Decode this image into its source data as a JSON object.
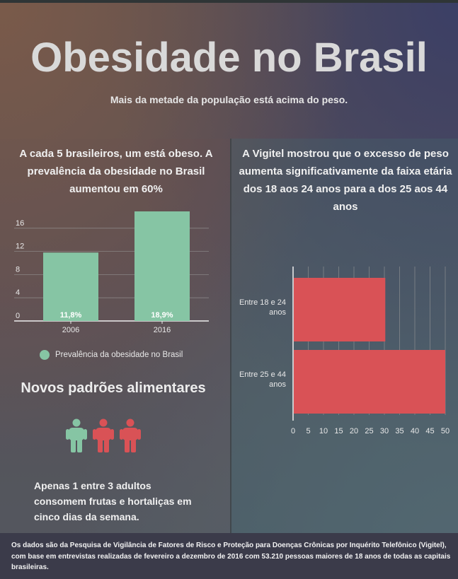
{
  "header": {
    "title": "Obesidade no Brasil",
    "subtitle": "Mais da metade da população está acima do peso."
  },
  "left": {
    "heading": "A cada 5 brasileiros, um está obeso. A prevalência da obesidade no Brasil aumentou em 60%",
    "legend_label": "Prevalência da obesidade no Brasil",
    "section_title": "Novos padrões alimentares",
    "people_icons": [
      "person-icon-green",
      "person-icon-red",
      "person-icon-red"
    ],
    "note": "Apenas 1 entre 3 adultos consomem frutas e hortaliças em cinco dias da semana."
  },
  "right": {
    "heading": "A Vigitel mostrou que o excesso de peso aumenta significativamente da faixa etária dos 18 aos 24 anos para a dos 25 aos 44 anos"
  },
  "footer": {
    "text": "Os dados são da Pesquisa de Vigilância de Fatores de Risco e Proteção para Doenças Crônicas por Inquérito Telefônico (Vigitel), com base em entrevistas realizadas de fevereiro a dezembro de 2016 com 53.210 pessoas maiores de 18 anos de todas as capitais brasileiras."
  },
  "colors": {
    "bar_green": "#86c5a4",
    "bar_red": "#d95256",
    "person_green": "#86c5a4",
    "person_red": "#d95256"
  },
  "chart_data": [
    {
      "type": "bar",
      "orientation": "vertical",
      "categories": [
        "2006",
        "2016"
      ],
      "values": [
        11.8,
        18.9
      ],
      "data_labels": [
        "11,8%",
        "18,9%"
      ],
      "series": [
        {
          "name": "Prevalência da obesidade no Brasil",
          "values": [
            11.8,
            18.9
          ]
        }
      ],
      "ylim": [
        0,
        20
      ],
      "yticks": [
        0,
        4,
        8,
        12,
        16
      ],
      "grid": true,
      "legend": "bottom"
    },
    {
      "type": "bar",
      "orientation": "horizontal",
      "categories": [
        [
          "Entre 18 e 24",
          "anos"
        ],
        [
          "Entre 25 e 44",
          "anos"
        ]
      ],
      "values": [
        30.3,
        50
      ],
      "xlim": [
        0,
        50
      ],
      "xticks": [
        0,
        5,
        10,
        15,
        20,
        25,
        30,
        35,
        40,
        45,
        50
      ],
      "grid": true
    }
  ]
}
